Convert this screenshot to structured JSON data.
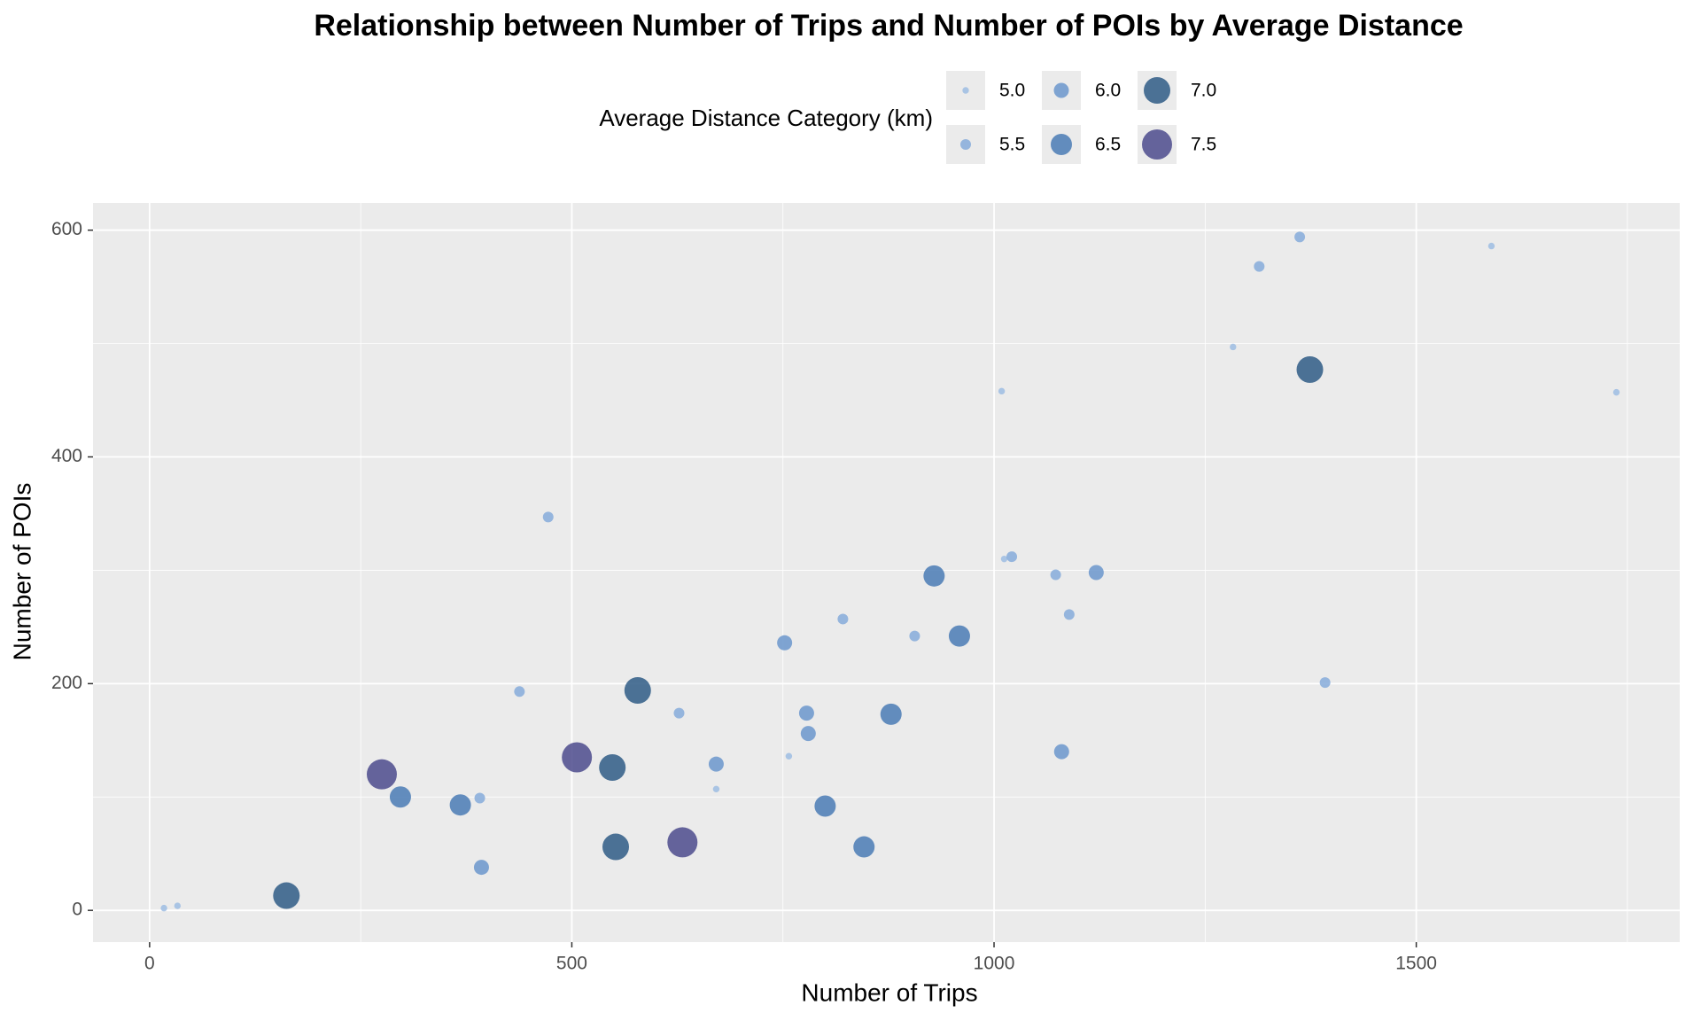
{
  "chart_data": {
    "type": "scatter",
    "title": "Relationship between Number of Trips and Number of POIs by Average Distance",
    "x_label": "Number of Trips",
    "y_label": "Number of POIs",
    "legend_title": "Average Distance Category (km)",
    "xlim": [
      -67,
      1812
    ],
    "ylim": [
      -28,
      624
    ],
    "xticks": [
      0,
      500,
      1000,
      1500
    ],
    "yticks": [
      0,
      200,
      400,
      600
    ],
    "x_minor_grid": [
      250,
      750,
      1250,
      1750
    ],
    "y_minor_grid": [
      100,
      300,
      500
    ],
    "grid": true,
    "legend_position": "top",
    "series": [
      {
        "name": "5.0",
        "color": "#9dbde3",
        "size": 3.7,
        "x": [
          17,
          33,
          671,
          757,
          1009,
          1012,
          1283,
          1589,
          1737
        ],
        "values": [
          2,
          4,
          107,
          136,
          458,
          310,
          497,
          586,
          457
        ]
      },
      {
        "name": "5.5",
        "color": "#86abda",
        "size": 6,
        "x": [
          391,
          438,
          472,
          627,
          821,
          906,
          1021,
          1073,
          1089,
          1314,
          1362,
          1392
        ],
        "values": [
          99,
          193,
          347,
          174,
          257,
          242,
          312,
          296,
          261,
          568,
          594,
          201
        ]
      },
      {
        "name": "6.0",
        "color": "#6b97cd",
        "size": 8.5,
        "x": [
          393,
          671,
          752,
          778,
          780,
          1080,
          1121
        ],
        "values": [
          38,
          129,
          236,
          174,
          156,
          140,
          298
        ]
      },
      {
        "name": "6.5",
        "color": "#4a7bb5",
        "size": 12,
        "x": [
          297,
          368,
          800,
          846,
          878,
          929,
          959
        ],
        "values": [
          100,
          93,
          92,
          56,
          173,
          295,
          242
        ]
      },
      {
        "name": "7.0",
        "color": "#2f5c86",
        "size": 15,
        "x": [
          162,
          548,
          552,
          578,
          1374
        ],
        "values": [
          13,
          126,
          56,
          194,
          477
        ]
      },
      {
        "name": "7.5",
        "color": "#4c4b8d",
        "size": 17,
        "x": [
          275,
          506,
          631
        ],
        "values": [
          120,
          135,
          60
        ]
      }
    ]
  }
}
